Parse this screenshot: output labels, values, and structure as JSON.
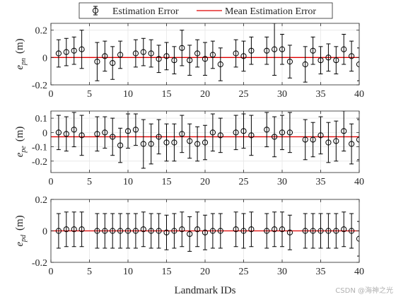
{
  "chart_data": {
    "type": "scatter",
    "legend": {
      "position": "top-center",
      "entries": [
        "Estimation Error",
        "Mean Estimation Error"
      ]
    },
    "xlabel": "Landmark IDs",
    "x_ticks": [
      "0",
      "5",
      "10",
      "15",
      "20",
      "25",
      "30",
      "35",
      "40"
    ],
    "x_range": [
      0,
      40
    ],
    "grid": true,
    "colors": {
      "errorbar": "#000000",
      "mean_line": "#e00000",
      "grid": "#e6e6e6",
      "axis": "#262626"
    },
    "panels": [
      {
        "ylabel_base": "e",
        "ylabel_sub": "pn",
        "ylabel_unit": "(m)",
        "y_range": [
          -0.2,
          0.25
        ],
        "y_ticks": [
          -0.2,
          0,
          0.2
        ],
        "y_tick_labels": [
          "-0.2",
          "0",
          "0.2"
        ],
        "mean": 0.0,
        "points": [
          {
            "x": 1,
            "y": 0.03,
            "e": 0.1
          },
          {
            "x": 2,
            "y": 0.04,
            "e": 0.1
          },
          {
            "x": 3,
            "y": 0.05,
            "e": 0.1
          },
          {
            "x": 4,
            "y": 0.06,
            "e": 0.14
          },
          {
            "x": 6,
            "y": -0.03,
            "e": 0.14
          },
          {
            "x": 7,
            "y": 0.01,
            "e": 0.11
          },
          {
            "x": 8,
            "y": -0.04,
            "e": 0.12
          },
          {
            "x": 9,
            "y": 0.02,
            "e": 0.1
          },
          {
            "x": 11,
            "y": 0.03,
            "e": 0.1
          },
          {
            "x": 12,
            "y": 0.04,
            "e": 0.1
          },
          {
            "x": 13,
            "y": 0.03,
            "e": 0.1
          },
          {
            "x": 14,
            "y": -0.01,
            "e": 0.1
          },
          {
            "x": 15,
            "y": 0.01,
            "e": 0.1
          },
          {
            "x": 16,
            "y": -0.02,
            "e": 0.1
          },
          {
            "x": 17,
            "y": 0.07,
            "e": 0.13
          },
          {
            "x": 18,
            "y": -0.02,
            "e": 0.11
          },
          {
            "x": 19,
            "y": 0.03,
            "e": 0.1
          },
          {
            "x": 20,
            "y": -0.01,
            "e": 0.12
          },
          {
            "x": 21,
            "y": 0.02,
            "e": 0.1
          },
          {
            "x": 22,
            "y": -0.05,
            "e": 0.12
          },
          {
            "x": 24,
            "y": 0.03,
            "e": 0.1
          },
          {
            "x": 25,
            "y": 0.01,
            "e": 0.11
          },
          {
            "x": 26,
            "y": 0.05,
            "e": 0.1
          },
          {
            "x": 28,
            "y": 0.05,
            "e": 0.1
          },
          {
            "x": 29,
            "y": 0.06,
            "e": 0.19
          },
          {
            "x": 30,
            "y": 0.06,
            "e": 0.11
          },
          {
            "x": 31,
            "y": -0.03,
            "e": 0.12
          },
          {
            "x": 33,
            "y": -0.05,
            "e": 0.13
          },
          {
            "x": 34,
            "y": 0.05,
            "e": 0.1
          },
          {
            "x": 35,
            "y": -0.02,
            "e": 0.1
          },
          {
            "x": 36,
            "y": 0.0,
            "e": 0.1
          },
          {
            "x": 37,
            "y": -0.02,
            "e": 0.1
          },
          {
            "x": 38,
            "y": 0.06,
            "e": 0.11
          },
          {
            "x": 39,
            "y": 0.01,
            "e": 0.11
          },
          {
            "x": 40,
            "y": -0.05,
            "e": 0.12
          }
        ]
      },
      {
        "ylabel_base": "e",
        "ylabel_sub": "pe",
        "ylabel_unit": "(m)",
        "y_range": [
          -0.28,
          0.15
        ],
        "y_ticks": [
          -0.2,
          -0.1,
          0,
          0.1
        ],
        "y_tick_labels": [
          "-0.2",
          "-0.1",
          "0",
          "0.1"
        ],
        "mean": -0.03,
        "points": [
          {
            "x": 1,
            "y": 0.0,
            "e": 0.12
          },
          {
            "x": 2,
            "y": -0.01,
            "e": 0.12
          },
          {
            "x": 3,
            "y": 0.02,
            "e": 0.12
          },
          {
            "x": 4,
            "y": -0.02,
            "e": 0.14
          },
          {
            "x": 6,
            "y": -0.01,
            "e": 0.12
          },
          {
            "x": 7,
            "y": 0.0,
            "e": 0.11
          },
          {
            "x": 8,
            "y": -0.03,
            "e": 0.13
          },
          {
            "x": 9,
            "y": -0.09,
            "e": 0.12
          },
          {
            "x": 10,
            "y": 0.01,
            "e": 0.12
          },
          {
            "x": 11,
            "y": 0.02,
            "e": 0.11
          },
          {
            "x": 12,
            "y": -0.08,
            "e": 0.17
          },
          {
            "x": 13,
            "y": -0.08,
            "e": 0.14
          },
          {
            "x": 14,
            "y": -0.03,
            "e": 0.12
          },
          {
            "x": 15,
            "y": -0.07,
            "e": 0.13
          },
          {
            "x": 16,
            "y": -0.07,
            "e": 0.13
          },
          {
            "x": 17,
            "y": -0.01,
            "e": 0.13
          },
          {
            "x": 18,
            "y": -0.06,
            "e": 0.12
          },
          {
            "x": 19,
            "y": -0.08,
            "e": 0.12
          },
          {
            "x": 20,
            "y": -0.07,
            "e": 0.12
          },
          {
            "x": 21,
            "y": 0.0,
            "e": 0.13
          },
          {
            "x": 22,
            "y": -0.02,
            "e": 0.12
          },
          {
            "x": 24,
            "y": 0.0,
            "e": 0.12
          },
          {
            "x": 25,
            "y": 0.01,
            "e": 0.12
          },
          {
            "x": 26,
            "y": -0.02,
            "e": 0.14
          },
          {
            "x": 28,
            "y": 0.02,
            "e": 0.12
          },
          {
            "x": 29,
            "y": -0.03,
            "e": 0.14
          },
          {
            "x": 30,
            "y": 0.0,
            "e": 0.12
          },
          {
            "x": 31,
            "y": 0.0,
            "e": 0.14
          },
          {
            "x": 33,
            "y": -0.05,
            "e": 0.14
          },
          {
            "x": 34,
            "y": -0.05,
            "e": 0.12
          },
          {
            "x": 35,
            "y": -0.02,
            "e": 0.13
          },
          {
            "x": 36,
            "y": -0.07,
            "e": 0.14
          },
          {
            "x": 37,
            "y": -0.06,
            "e": 0.14
          },
          {
            "x": 38,
            "y": 0.01,
            "e": 0.14
          },
          {
            "x": 39,
            "y": -0.08,
            "e": 0.14
          },
          {
            "x": 40,
            "y": -0.05,
            "e": 0.14
          }
        ]
      },
      {
        "ylabel_base": "e",
        "ylabel_sub": "pd",
        "ylabel_unit": "(m)",
        "y_range": [
          -0.2,
          0.2
        ],
        "y_ticks": [
          -0.2,
          0,
          0.2
        ],
        "y_tick_labels": [
          "-0.2",
          "0",
          "0.2"
        ],
        "mean": 0.0,
        "points": [
          {
            "x": 1,
            "y": 0.0,
            "e": 0.11
          },
          {
            "x": 2,
            "y": 0.01,
            "e": 0.11
          },
          {
            "x": 3,
            "y": 0.01,
            "e": 0.11
          },
          {
            "x": 4,
            "y": 0.01,
            "e": 0.11
          },
          {
            "x": 6,
            "y": 0.0,
            "e": 0.11
          },
          {
            "x": 7,
            "y": 0.0,
            "e": 0.11
          },
          {
            "x": 8,
            "y": 0.0,
            "e": 0.11
          },
          {
            "x": 9,
            "y": 0.0,
            "e": 0.11
          },
          {
            "x": 10,
            "y": 0.0,
            "e": 0.11
          },
          {
            "x": 11,
            "y": 0.0,
            "e": 0.11
          },
          {
            "x": 12,
            "y": 0.01,
            "e": 0.11
          },
          {
            "x": 13,
            "y": 0.0,
            "e": 0.11
          },
          {
            "x": 14,
            "y": 0.0,
            "e": 0.11
          },
          {
            "x": 15,
            "y": -0.01,
            "e": 0.11
          },
          {
            "x": 16,
            "y": 0.0,
            "e": 0.11
          },
          {
            "x": 17,
            "y": 0.01,
            "e": 0.11
          },
          {
            "x": 18,
            "y": -0.02,
            "e": 0.11
          },
          {
            "x": 19,
            "y": 0.01,
            "e": 0.11
          },
          {
            "x": 20,
            "y": -0.01,
            "e": 0.11
          },
          {
            "x": 21,
            "y": 0.0,
            "e": 0.11
          },
          {
            "x": 22,
            "y": 0.0,
            "e": 0.11
          },
          {
            "x": 24,
            "y": 0.01,
            "e": 0.11
          },
          {
            "x": 25,
            "y": 0.0,
            "e": 0.11
          },
          {
            "x": 26,
            "y": 0.01,
            "e": 0.11
          },
          {
            "x": 28,
            "y": 0.0,
            "e": 0.11
          },
          {
            "x": 29,
            "y": 0.01,
            "e": 0.11
          },
          {
            "x": 30,
            "y": 0.01,
            "e": 0.11
          },
          {
            "x": 31,
            "y": -0.01,
            "e": 0.11
          },
          {
            "x": 33,
            "y": 0.0,
            "e": 0.11
          },
          {
            "x": 34,
            "y": 0.0,
            "e": 0.11
          },
          {
            "x": 35,
            "y": 0.0,
            "e": 0.11
          },
          {
            "x": 36,
            "y": 0.0,
            "e": 0.11
          },
          {
            "x": 37,
            "y": 0.0,
            "e": 0.11
          },
          {
            "x": 38,
            "y": 0.01,
            "e": 0.11
          },
          {
            "x": 39,
            "y": 0.0,
            "e": 0.11
          },
          {
            "x": 40,
            "y": -0.05,
            "e": 0.11
          }
        ]
      }
    ]
  },
  "watermark": "CSDN @海神之光"
}
